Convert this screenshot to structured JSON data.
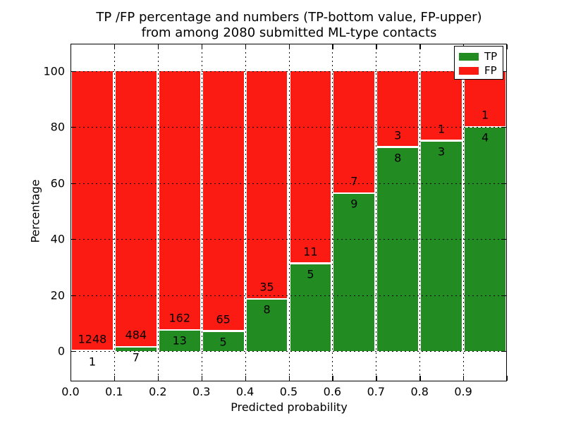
{
  "chart_data": {
    "type": "bar",
    "stacked": true,
    "orientation": "vertical",
    "title_line1": "TP /FP percentage and numbers (TP-bottom value, FP-upper)",
    "title_line2": "from among 2080 submitted ML-type contacts",
    "xlabel": "Predicted probability",
    "ylabel": "Percentage",
    "total_contacts": 2080,
    "bin_width": 0.1,
    "categories": [
      "0.0-0.1",
      "0.1-0.2",
      "0.2-0.3",
      "0.3-0.4",
      "0.4-0.5",
      "0.5-0.6",
      "0.6-0.7",
      "0.7-0.8",
      "0.8-0.9",
      "0.9-1.0"
    ],
    "x_tick_labels": [
      "0.0",
      "0.1",
      "0.2",
      "0.3",
      "0.4",
      "0.5",
      "0.6",
      "0.7",
      "0.8",
      "0.9"
    ],
    "y_ticks": [
      0,
      20,
      40,
      60,
      80,
      100
    ],
    "xlim": [
      0.0,
      1.0
    ],
    "ylim": [
      -10.7,
      109.7
    ],
    "grid": "dotted, both axes, every 0.1 x and 20 y",
    "legend_position": "upper right",
    "series": [
      {
        "name": "TP",
        "color": "#228b22",
        "counts": [
          1,
          7,
          13,
          5,
          8,
          5,
          9,
          8,
          3,
          4
        ],
        "pct_of_bin": [
          0.08,
          1.43,
          7.43,
          7.14,
          18.6,
          31.25,
          56.25,
          72.73,
          75.0,
          80.0
        ]
      },
      {
        "name": "FP",
        "color": "#fb1b13",
        "counts": [
          1248,
          484,
          162,
          65,
          35,
          11,
          7,
          3,
          1,
          1
        ],
        "pct_of_bin": [
          99.92,
          98.57,
          92.57,
          92.86,
          81.4,
          68.75,
          43.75,
          27.27,
          25.0,
          20.0
        ]
      }
    ],
    "bar_top_pct": 100,
    "colors": {
      "tp": "#228b22",
      "fp": "#fb1b13",
      "text": "#000000",
      "grid": "#0a0a0a",
      "background": "#ffffff"
    }
  }
}
